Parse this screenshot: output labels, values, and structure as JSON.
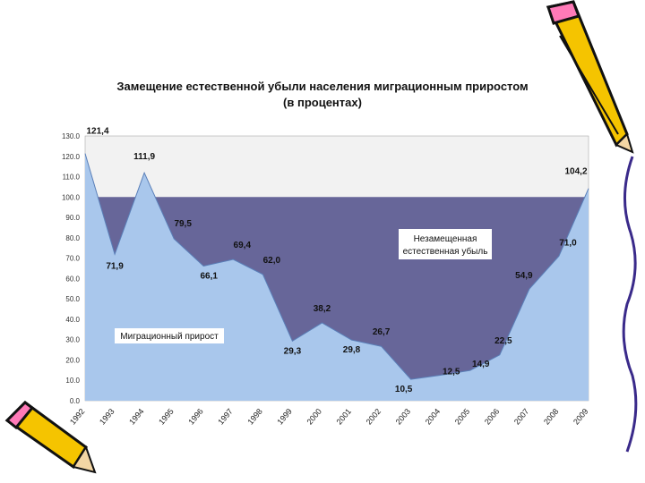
{
  "chart_data": {
    "type": "area",
    "title": "Замещение естественной убыли населения миграционным приростом",
    "subtitle": "(в процентах)",
    "xlabel": "",
    "ylabel": "",
    "x": [
      "1992",
      "1993",
      "1994",
      "1995",
      "1996",
      "1997",
      "1998",
      "1999",
      "2000",
      "2001",
      "2002",
      "2003",
      "2004",
      "2005",
      "2006",
      "2007",
      "2008",
      "2009"
    ],
    "series": [
      {
        "name": "Миграционный прирост",
        "values": [
          121.4,
          71.9,
          111.9,
          79.5,
          66.1,
          69.4,
          62.0,
          29.3,
          38.2,
          29.8,
          26.7,
          10.5,
          12.5,
          14.9,
          22.5,
          54.9,
          71.0,
          104.2
        ]
      }
    ],
    "data_labels": [
      "121,4",
      "71,9",
      "111,9",
      "79,5",
      "66,1",
      "69,4",
      "62,0",
      "29,3",
      "38,2",
      "29,8",
      "26,7",
      "10,5",
      "12,5",
      "14,9",
      "22,5",
      "54,9",
      "71,0",
      "104,2"
    ],
    "y_ticks": [
      "0.0",
      "10.0",
      "20.0",
      "30.0",
      "40.0",
      "50.0",
      "60.0",
      "70.0",
      "80.0",
      "90.0",
      "100.0",
      "110.0",
      "120.0",
      "130.0"
    ],
    "ylim": [
      0,
      130
    ],
    "reference_line": 100,
    "annotations": {
      "unreplaced": "Незамещенная естественная убыль",
      "migration": "Миграционный прирост"
    },
    "colors": {
      "migration_fill": "#a9c7ec",
      "unreplaced_fill": "#676699",
      "plot_bg": "#f2f2f2"
    },
    "grid": false,
    "legend": "none"
  }
}
